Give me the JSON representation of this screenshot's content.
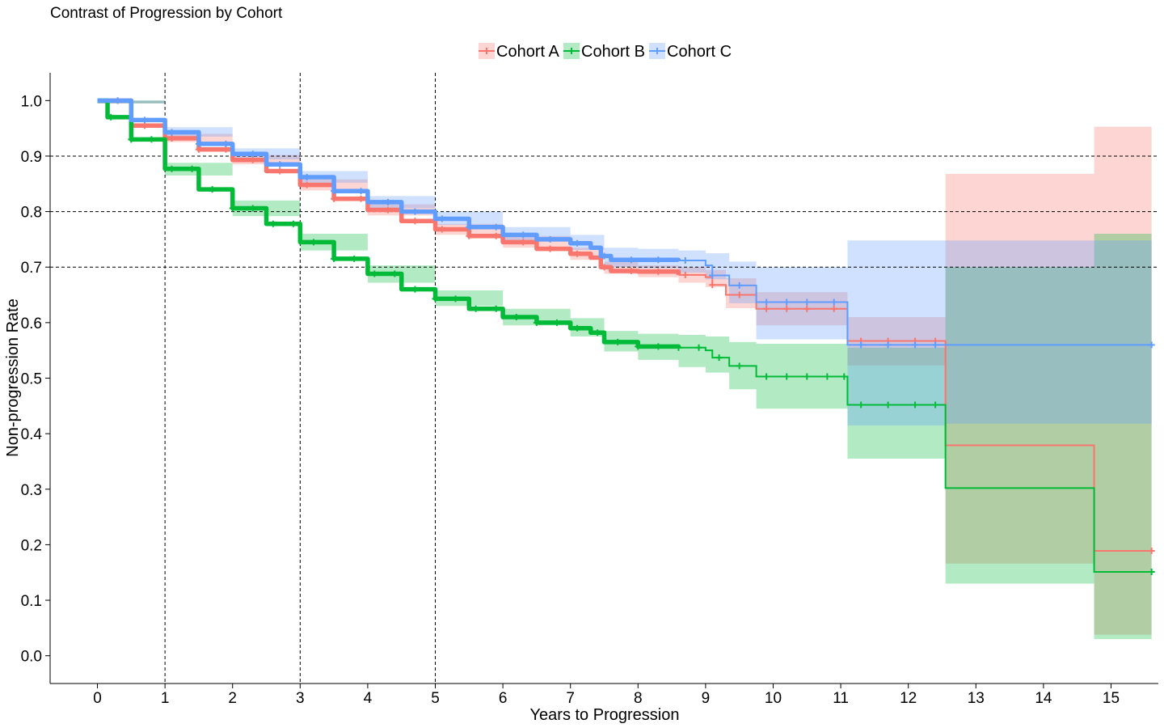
{
  "chart_data": {
    "type": "line",
    "subtype": "kaplan-meier step plot with confidence bands and censor marks",
    "title": "Contrast of Progression by Cohort",
    "xlabel": "Years to Progression",
    "ylabel": "Non-progression Rate",
    "xlim": [
      -0.7,
      15.7
    ],
    "ylim": [
      -0.05,
      1.05
    ],
    "x_ticks": [
      0,
      1,
      2,
      3,
      4,
      5,
      6,
      7,
      8,
      9,
      10,
      11,
      12,
      13,
      14,
      15
    ],
    "x_tick_labels": [
      "0",
      "1",
      "2",
      "3",
      "4",
      "5",
      "6",
      "7",
      "8",
      "9",
      "10",
      "11",
      "12",
      "13",
      "14",
      "15"
    ],
    "y_ticks": [
      0,
      0.1,
      0.2,
      0.3,
      0.4,
      0.5,
      0.6,
      0.7,
      0.8,
      0.9,
      1.0
    ],
    "y_tick_labels": [
      "0.0",
      "0.1",
      "0.2",
      "0.3",
      "0.4",
      "0.5",
      "0.6",
      "0.7",
      "0.8",
      "0.9",
      "1.0"
    ],
    "reference_lines": {
      "vertical": [
        1,
        3,
        5
      ],
      "horizontal": [
        0.7,
        0.8,
        0.9
      ]
    },
    "legend_position": "top-center",
    "series": [
      {
        "name": "Cohort A",
        "color": "#F8766D",
        "points": [
          [
            0,
            1.0
          ],
          [
            0.5,
            0.955
          ],
          [
            1,
            0.932
          ],
          [
            1.5,
            0.912
          ],
          [
            2,
            0.893
          ],
          [
            2.5,
            0.873
          ],
          [
            3,
            0.848
          ],
          [
            3.5,
            0.823
          ],
          [
            4,
            0.803
          ],
          [
            4.5,
            0.783
          ],
          [
            5,
            0.768
          ],
          [
            5.5,
            0.756
          ],
          [
            6,
            0.745
          ],
          [
            6.5,
            0.733
          ],
          [
            7,
            0.724
          ],
          [
            7.3,
            0.717
          ],
          [
            7.45,
            0.7
          ],
          [
            7.6,
            0.693
          ],
          [
            8,
            0.692
          ],
          [
            8.6,
            0.686
          ],
          [
            9,
            0.682
          ],
          [
            9.1,
            0.668
          ],
          [
            9.3,
            0.65
          ],
          [
            9.75,
            0.625
          ],
          [
            10.5,
            0.625
          ],
          [
            11.05,
            0.625
          ],
          [
            11.1,
            0.567
          ],
          [
            12,
            0.567
          ],
          [
            12.55,
            0.567
          ],
          [
            12.55,
            0.379
          ],
          [
            14.75,
            0.379
          ],
          [
            14.75,
            0.189
          ],
          [
            15.6,
            0.189
          ]
        ],
        "ci_lower": [
          [
            0,
            0.995
          ],
          [
            1,
            0.925
          ],
          [
            2,
            0.885
          ],
          [
            3,
            0.838
          ],
          [
            4,
            0.793
          ],
          [
            5,
            0.758
          ],
          [
            6,
            0.735
          ],
          [
            7,
            0.713
          ],
          [
            7.5,
            0.688
          ],
          [
            8,
            0.682
          ],
          [
            8.6,
            0.672
          ],
          [
            9,
            0.664
          ],
          [
            9.3,
            0.626
          ],
          [
            9.75,
            0.595
          ],
          [
            11.1,
            0.523
          ],
          [
            12.55,
            0.166
          ],
          [
            14.75,
            0.038
          ]
        ],
        "ci_upper": [
          [
            0,
            1.0
          ],
          [
            1,
            0.94
          ],
          [
            2,
            0.902
          ],
          [
            3,
            0.858
          ],
          [
            4,
            0.813
          ],
          [
            5,
            0.778
          ],
          [
            6,
            0.756
          ],
          [
            7,
            0.735
          ],
          [
            7.5,
            0.71
          ],
          [
            8,
            0.703
          ],
          [
            8.6,
            0.7
          ],
          [
            9,
            0.695
          ],
          [
            9.3,
            0.68
          ],
          [
            9.75,
            0.655
          ],
          [
            11.1,
            0.61
          ],
          [
            12.55,
            0.868
          ],
          [
            14.75,
            0.953
          ]
        ],
        "censor_x": [
          0.3,
          0.7,
          1.1,
          1.5,
          1.9,
          2.3,
          2.7,
          3.1,
          3.5,
          3.9,
          4.3,
          4.7,
          5.1,
          5.5,
          5.9,
          6.3,
          6.7,
          7.1,
          7.5,
          7.9,
          8.3,
          8.7,
          9.1,
          9.5,
          9.9,
          10.2,
          10.5,
          10.9,
          11.3,
          11.7,
          12.1,
          12.4,
          15.6
        ]
      },
      {
        "name": "Cohort B",
        "color": "#00BA38",
        "points": [
          [
            0,
            1.0
          ],
          [
            0.15,
            0.97
          ],
          [
            0.5,
            0.93
          ],
          [
            1,
            0.877
          ],
          [
            1.5,
            0.84
          ],
          [
            2,
            0.806
          ],
          [
            2.5,
            0.778
          ],
          [
            3,
            0.745
          ],
          [
            3.5,
            0.715
          ],
          [
            4,
            0.688
          ],
          [
            4.5,
            0.66
          ],
          [
            5,
            0.643
          ],
          [
            5.5,
            0.625
          ],
          [
            6,
            0.61
          ],
          [
            6.5,
            0.6
          ],
          [
            7,
            0.59
          ],
          [
            7.3,
            0.582
          ],
          [
            7.5,
            0.565
          ],
          [
            8,
            0.557
          ],
          [
            8.6,
            0.555
          ],
          [
            9,
            0.55
          ],
          [
            9.1,
            0.537
          ],
          [
            9.35,
            0.522
          ],
          [
            9.75,
            0.503
          ],
          [
            10.5,
            0.503
          ],
          [
            11.05,
            0.503
          ],
          [
            11.1,
            0.452
          ],
          [
            12,
            0.452
          ],
          [
            12.55,
            0.452
          ],
          [
            12.55,
            0.302
          ],
          [
            14.75,
            0.302
          ],
          [
            14.75,
            0.151
          ],
          [
            15.6,
            0.151
          ]
        ],
        "ci_lower": [
          [
            0,
            0.995
          ],
          [
            1,
            0.865
          ],
          [
            2,
            0.792
          ],
          [
            3,
            0.73
          ],
          [
            4,
            0.672
          ],
          [
            5,
            0.63
          ],
          [
            6,
            0.595
          ],
          [
            7,
            0.575
          ],
          [
            7.5,
            0.548
          ],
          [
            8,
            0.533
          ],
          [
            8.6,
            0.52
          ],
          [
            9,
            0.51
          ],
          [
            9.35,
            0.48
          ],
          [
            9.75,
            0.445
          ],
          [
            11.1,
            0.355
          ],
          [
            12.55,
            0.13
          ],
          [
            14.75,
            0.03
          ]
        ],
        "ci_upper": [
          [
            0,
            1.0
          ],
          [
            1,
            0.888
          ],
          [
            2,
            0.82
          ],
          [
            3,
            0.76
          ],
          [
            4,
            0.703
          ],
          [
            5,
            0.658
          ],
          [
            6,
            0.625
          ],
          [
            7,
            0.608
          ],
          [
            7.5,
            0.585
          ],
          [
            8,
            0.58
          ],
          [
            8.6,
            0.578
          ],
          [
            9,
            0.575
          ],
          [
            9.35,
            0.565
          ],
          [
            9.75,
            0.562
          ],
          [
            11.1,
            0.555
          ],
          [
            12.55,
            0.7
          ],
          [
            14.75,
            0.76
          ]
        ],
        "censor_x": [
          0.2,
          0.5,
          0.8,
          1.1,
          1.4,
          1.7,
          2.0,
          2.3,
          2.6,
          2.9,
          3.2,
          3.5,
          3.8,
          4.1,
          4.4,
          4.7,
          5.0,
          5.3,
          5.6,
          5.9,
          6.2,
          6.5,
          6.8,
          7.1,
          7.4,
          7.7,
          8.0,
          8.3,
          8.6,
          8.9,
          9.2,
          9.5,
          9.9,
          10.2,
          10.5,
          10.8,
          11.05,
          11.3,
          11.7,
          12.1,
          12.4,
          15.6
        ]
      },
      {
        "name": "Cohort C",
        "color": "#619CFF",
        "points": [
          [
            0,
            1.0
          ],
          [
            0.5,
            0.965
          ],
          [
            1,
            0.943
          ],
          [
            1.5,
            0.922
          ],
          [
            2,
            0.904
          ],
          [
            2.5,
            0.885
          ],
          [
            3,
            0.862
          ],
          [
            3.5,
            0.837
          ],
          [
            4,
            0.817
          ],
          [
            4.5,
            0.8
          ],
          [
            5,
            0.787
          ],
          [
            5.5,
            0.772
          ],
          [
            6,
            0.758
          ],
          [
            6.5,
            0.75
          ],
          [
            7,
            0.743
          ],
          [
            7.3,
            0.735
          ],
          [
            7.45,
            0.72
          ],
          [
            7.6,
            0.713
          ],
          [
            8,
            0.713
          ],
          [
            8.6,
            0.712
          ],
          [
            9,
            0.703
          ],
          [
            9.1,
            0.685
          ],
          [
            9.35,
            0.667
          ],
          [
            9.75,
            0.637
          ],
          [
            10.5,
            0.637
          ],
          [
            11.05,
            0.637
          ],
          [
            11.1,
            0.56
          ],
          [
            12,
            0.56
          ],
          [
            12.55,
            0.56
          ],
          [
            15.6,
            0.56
          ]
        ],
        "ci_lower": [
          [
            0,
            0.995
          ],
          [
            1,
            0.935
          ],
          [
            2,
            0.894
          ],
          [
            3,
            0.852
          ],
          [
            4,
            0.806
          ],
          [
            5,
            0.776
          ],
          [
            6,
            0.746
          ],
          [
            7,
            0.731
          ],
          [
            7.5,
            0.7
          ],
          [
            8,
            0.698
          ],
          [
            8.6,
            0.69
          ],
          [
            9,
            0.678
          ],
          [
            9.35,
            0.635
          ],
          [
            9.75,
            0.57
          ],
          [
            11.1,
            0.415
          ],
          [
            12.55,
            0.418
          ]
        ],
        "ci_upper": [
          [
            0,
            1.0
          ],
          [
            1,
            0.952
          ],
          [
            2,
            0.914
          ],
          [
            3,
            0.873
          ],
          [
            4,
            0.828
          ],
          [
            5,
            0.8
          ],
          [
            6,
            0.772
          ],
          [
            7,
            0.758
          ],
          [
            7.5,
            0.735
          ],
          [
            8,
            0.733
          ],
          [
            8.6,
            0.73
          ],
          [
            9,
            0.725
          ],
          [
            9.35,
            0.71
          ],
          [
            9.75,
            0.7
          ],
          [
            11.1,
            0.748
          ],
          [
            12.55,
            0.748
          ]
        ],
        "censor_x": [
          0.3,
          0.7,
          1.1,
          1.5,
          1.9,
          2.3,
          2.7,
          3.1,
          3.5,
          3.9,
          4.3,
          4.7,
          5.1,
          5.5,
          5.9,
          6.3,
          6.7,
          7.1,
          7.5,
          7.9,
          8.3,
          8.7,
          9.1,
          9.5,
          9.9,
          10.2,
          10.5,
          10.9,
          11.3,
          11.7,
          12.1,
          12.4,
          15.6
        ]
      }
    ]
  }
}
